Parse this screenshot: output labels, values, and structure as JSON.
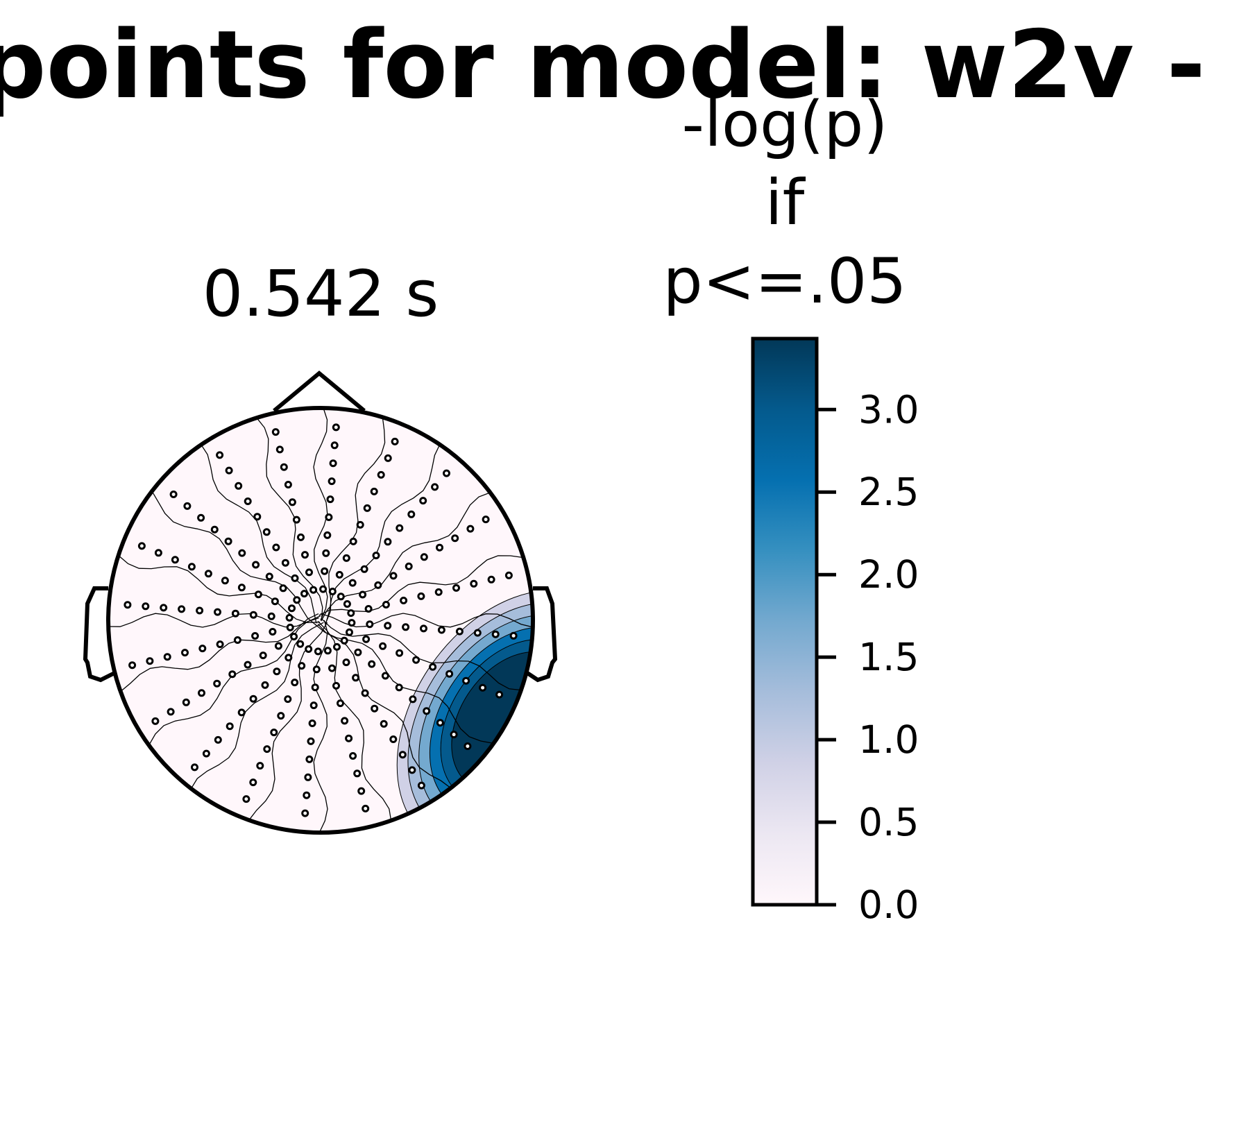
{
  "chart_data": {
    "type": "topomap",
    "title": "points for model: w2v -",
    "subtitle": "0.542 s",
    "colorbar_label": [
      "-log(p)",
      "if",
      "p<=.05"
    ],
    "peak_value": 3.4,
    "colormap": [
      "#fff7fb",
      "#ece7f2",
      "#d0d1e6",
      "#a6bddb",
      "#74a9cf",
      "#3690c0",
      "#0570b0",
      "#045a8d",
      "#023858"
    ],
    "ylim": [
      0,
      3.43
    ],
    "yticks": [
      {
        "value": 0,
        "label": "0.0"
      },
      {
        "value": 0.5,
        "label": "0.5"
      },
      {
        "value": 1,
        "label": "1.0"
      },
      {
        "value": 1.5,
        "label": "1.5"
      },
      {
        "value": 2,
        "label": "2.0"
      },
      {
        "value": 2.5,
        "label": "2.5"
      },
      {
        "value": 3,
        "label": "3.0"
      }
    ]
  }
}
